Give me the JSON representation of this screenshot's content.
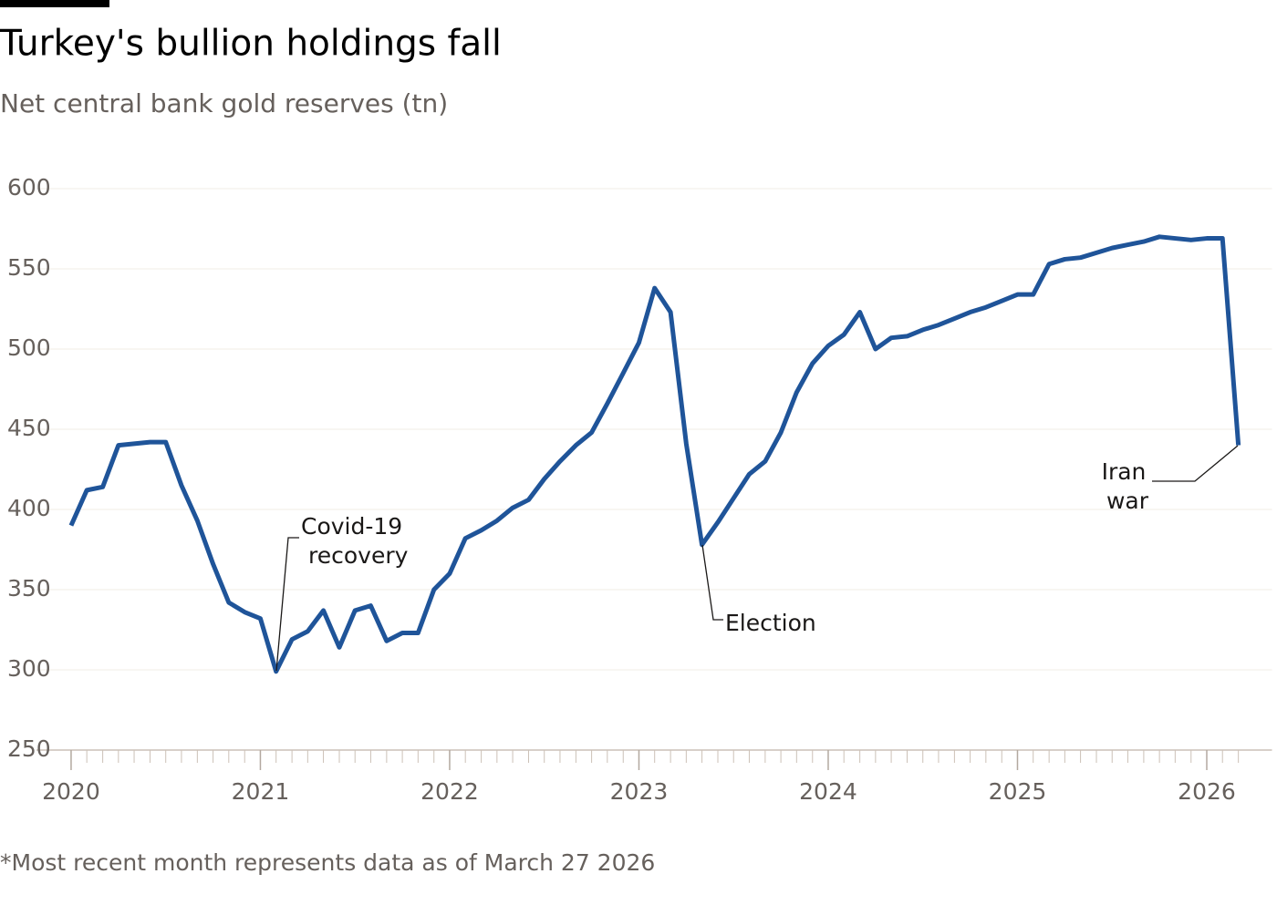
{
  "chart_data": {
    "type": "line",
    "title": "Turkey's bullion holdings fall",
    "subtitle": "Net central bank gold reserves (tn)",
    "footnote": "*Most recent month represents data as of March 27 2026",
    "x": [
      2020,
      2020.083,
      2020.167,
      2020.25,
      2020.333,
      2020.417,
      2020.5,
      2020.583,
      2020.667,
      2020.75,
      2020.833,
      2020.917,
      2021,
      2021.083,
      2021.167,
      2021.25,
      2021.333,
      2021.417,
      2021.5,
      2021.583,
      2021.667,
      2021.75,
      2021.833,
      2021.917,
      2022,
      2022.083,
      2022.167,
      2022.25,
      2022.333,
      2022.417,
      2022.5,
      2022.583,
      2022.667,
      2022.75,
      2022.833,
      2022.917,
      2023,
      2023.083,
      2023.167,
      2023.25,
      2023.333,
      2023.417,
      2023.5,
      2023.583,
      2023.667,
      2023.75,
      2023.833,
      2023.917,
      2024,
      2024.083,
      2024.167,
      2024.25,
      2024.333,
      2024.417,
      2024.5,
      2024.583,
      2024.667,
      2024.75,
      2024.833,
      2024.917,
      2025,
      2025.083,
      2025.167,
      2025.25,
      2025.333,
      2025.417,
      2025.5,
      2025.583,
      2025.667,
      2025.75,
      2025.833,
      2025.917,
      2026,
      2026.083,
      2026.167
    ],
    "series": [
      {
        "name": "Net central bank gold reserves",
        "color": "#1f5499",
        "values": [
          390,
          412,
          414,
          440,
          441,
          442,
          442,
          415,
          393,
          366,
          342,
          336,
          332,
          299,
          319,
          324,
          337,
          314,
          337,
          340,
          318,
          323,
          323,
          350,
          360,
          382,
          387,
          393,
          401,
          406,
          419,
          430,
          440,
          448,
          466,
          485,
          504,
          538,
          523,
          441,
          378,
          392,
          407,
          422,
          430,
          448,
          473,
          491,
          502,
          509,
          523,
          500,
          507,
          508,
          512,
          515,
          519,
          523,
          526,
          530,
          534,
          534,
          553,
          556,
          557,
          560,
          563,
          565,
          567,
          570,
          569,
          568,
          569,
          569,
          440
        ]
      }
    ],
    "xlim": [
      2019.94,
      2026.2
    ],
    "xticks": [
      2020,
      2021,
      2022,
      2023,
      2024,
      2025,
      2026
    ],
    "ylim": [
      250,
      600
    ],
    "yticks": [
      250,
      300,
      350,
      400,
      450,
      500,
      550,
      600
    ],
    "grid": true,
    "annotations": [
      {
        "text": [
          "Covid-19",
          "recovery"
        ]
      },
      {
        "text": [
          "Election"
        ]
      },
      {
        "text": [
          "Iran",
          "war"
        ]
      }
    ]
  }
}
